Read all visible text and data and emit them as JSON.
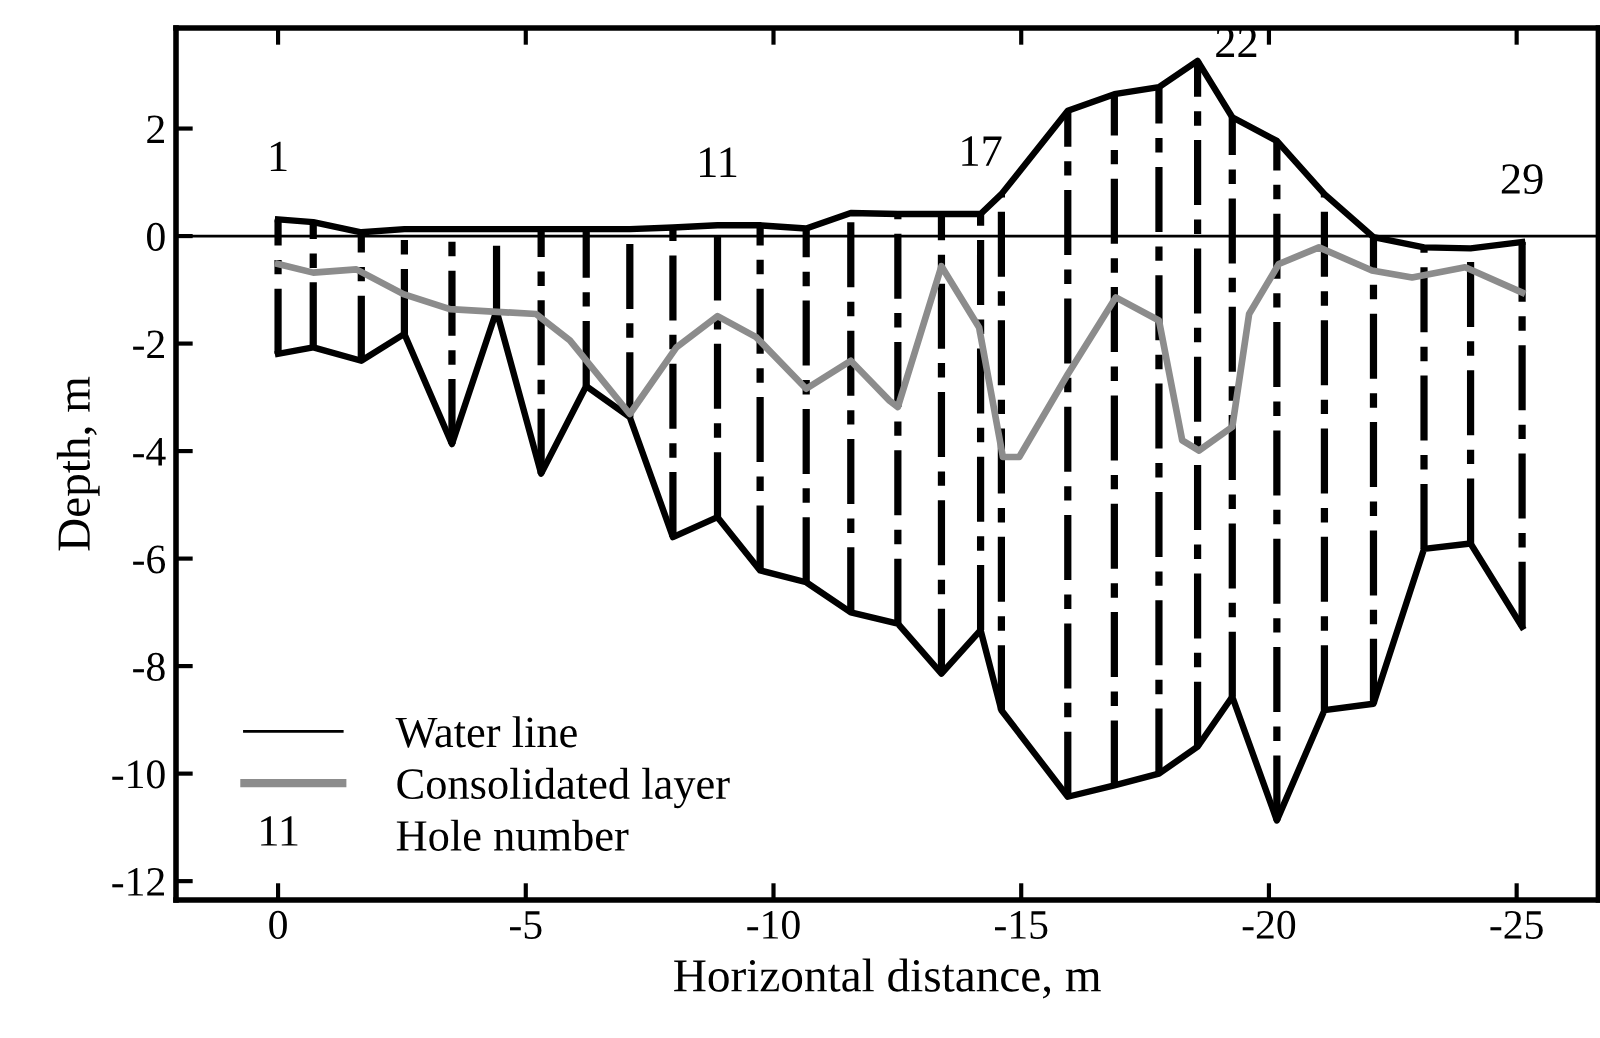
{
  "chart_data": {
    "type": "line",
    "xlabel": "Horizontal distance, m",
    "ylabel": "Depth, m",
    "xlim": [
      2.06,
      -26.65
    ],
    "ylim": [
      -12.35,
      3.87
    ],
    "xticks": [
      0,
      -5,
      -10,
      -15,
      -20,
      -25
    ],
    "yticks": [
      -12,
      -10,
      -8,
      -6,
      -4,
      -2,
      0,
      2
    ],
    "x": [
      0.0,
      -0.71,
      -1.68,
      -2.55,
      -3.51,
      -4.41,
      -5.31,
      -6.22,
      -7.1,
      -7.97,
      -8.87,
      -9.73,
      -10.66,
      -11.56,
      -12.51,
      -13.39,
      -14.18,
      -14.6,
      -15.94,
      -16.88,
      -17.78,
      -18.56,
      -19.26,
      -20.16,
      -21.12,
      -22.11,
      -23.13,
      -24.07,
      -25.11
    ],
    "series": [
      {
        "color": "#000000",
        "values": [
          0.31,
          0.26,
          0.07,
          0.13,
          0.13,
          0.13,
          0.13,
          0.13,
          0.13,
          0.16,
          0.2,
          0.2,
          0.14,
          0.43,
          0.41,
          0.41,
          0.41,
          0.78,
          2.33,
          2.64,
          2.77,
          3.26,
          2.21,
          1.77,
          0.78,
          -0.02,
          -0.21,
          -0.23,
          -0.11
        ]
      },
      {
        "color": "#000000",
        "errors": [
          [
            -2.19,
            0.31
          ],
          [
            -2.07,
            0.26
          ],
          [
            -2.32,
            0.07
          ],
          [
            -1.82,
            0.13
          ],
          [
            -3.87,
            0.13
          ],
          [
            -1.39,
            0.13
          ],
          [
            -4.42,
            0.13
          ],
          [
            -2.79,
            0.13
          ],
          [
            -3.37,
            0.13
          ],
          [
            -5.6,
            0.16
          ],
          [
            -5.23,
            0.2
          ],
          [
            -6.22,
            0.2
          ],
          [
            -6.44,
            0.14
          ],
          [
            -7.0,
            0.43
          ],
          [
            -7.21,
            0.41
          ],
          [
            -8.14,
            0.41
          ],
          [
            -7.33,
            0.41
          ],
          [
            -8.82,
            0.78
          ],
          [
            -10.43,
            2.33
          ],
          [
            -10.22,
            2.64
          ],
          [
            -10.0,
            2.77
          ],
          [
            -9.5,
            3.26
          ],
          [
            -8.57,
            2.21
          ],
          [
            -10.87,
            1.77
          ],
          [
            -8.82,
            0.78
          ],
          [
            -8.7,
            -0.02
          ],
          [
            -5.82,
            -0.21
          ],
          [
            -5.72,
            -0.23
          ],
          [
            -7.27,
            -0.11
          ]
        ],
        "values": [
          -2.19,
          -2.07,
          -2.32,
          -1.82,
          -3.87,
          -1.39,
          -4.42,
          -2.79,
          -3.37,
          -5.6,
          -5.23,
          -6.22,
          -6.44,
          -7.0,
          -7.21,
          -8.14,
          -7.33,
          -8.82,
          -10.43,
          -10.22,
          -10.0,
          -9.5,
          -8.57,
          -10.87,
          -8.82,
          -8.7,
          -5.82,
          -5.72,
          -7.27
        ]
      },
      {
        "name": "Consolidated layer",
        "color": "#8c8c8c",
        "x": [
          0.0,
          -0.71,
          -1.58,
          -2.53,
          -3.47,
          -5.21,
          -5.89,
          -7.1,
          -8.04,
          -8.87,
          -9.65,
          -10.66,
          -11.56,
          -12.34,
          -12.51,
          -13.39,
          -14.15,
          -14.63,
          -14.96,
          -15.94,
          -16.91,
          -17.78,
          -18.25,
          -18.59,
          -19.26,
          -19.6,
          -20.2,
          -21.01,
          -22.08,
          -22.89,
          -23.96,
          -25.11
        ],
        "values": [
          -0.52,
          -0.68,
          -0.62,
          -1.08,
          -1.36,
          -1.45,
          -1.94,
          -3.31,
          -2.07,
          -1.49,
          -1.88,
          -2.84,
          -2.32,
          -3.06,
          -3.18,
          -0.56,
          -1.7,
          -4.11,
          -4.11,
          -2.57,
          -1.14,
          -1.57,
          -3.8,
          -3.99,
          -3.55,
          -1.45,
          -0.52,
          -0.21,
          -0.64,
          -0.77,
          -0.58,
          -1.05
        ]
      }
    ],
    "ref_lines": [
      {
        "axis": "y",
        "value": 0,
        "label": "Water line",
        "color": "#000000"
      }
    ],
    "annotations": [
      {
        "text": "1",
        "x": 0.0,
        "y": 0.31
      },
      {
        "text": "11",
        "x": -8.87,
        "y": 0.2
      },
      {
        "text": "17",
        "x": -14.18,
        "y": 0.41
      },
      {
        "text": "22",
        "x": -18.56,
        "y": 3.26
      },
      {
        "text": "29",
        "x": -25.11,
        "y": -0.11
      },
      "Hole number"
    ],
    "legend": "bottom left",
    "grid": false
  }
}
